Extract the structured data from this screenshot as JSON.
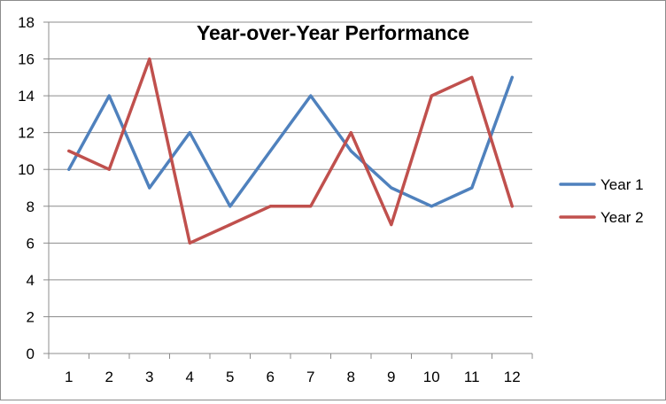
{
  "chart_data": {
    "type": "line",
    "title": "Year-over-Year Performance",
    "xlabel": "",
    "ylabel": "",
    "categories": [
      "1",
      "2",
      "3",
      "4",
      "5",
      "6",
      "7",
      "8",
      "9",
      "10",
      "11",
      "12"
    ],
    "ylim": [
      0,
      18
    ],
    "yticks": [
      0,
      2,
      4,
      6,
      8,
      10,
      12,
      14,
      16,
      18
    ],
    "grid": true,
    "legend_position": "right",
    "series": [
      {
        "name": "Year 1",
        "color": "#4f81bd",
        "values": [
          10,
          14,
          9,
          12,
          8,
          11,
          14,
          11,
          9,
          8,
          9,
          15
        ]
      },
      {
        "name": "Year 2",
        "color": "#c0504d",
        "values": [
          11,
          10,
          16,
          6,
          7,
          8,
          8,
          12,
          7,
          14,
          15,
          8
        ]
      }
    ]
  }
}
